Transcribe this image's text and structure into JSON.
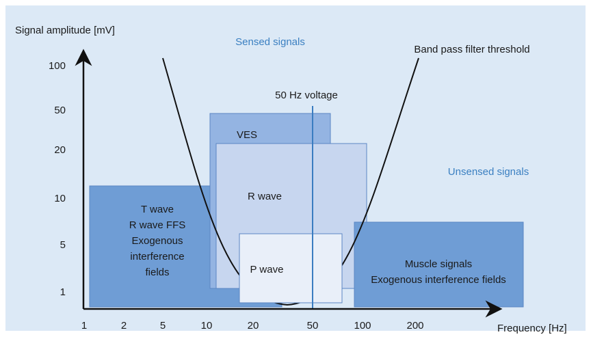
{
  "axes": {
    "y_label": "Signal amplitude [mV]",
    "x_label": "Frequency [Hz]",
    "y_ticks": [
      "100",
      "50",
      "20",
      "10",
      "5",
      "1"
    ],
    "x_ticks": [
      "1",
      "2",
      "5",
      "10",
      "20",
      "50",
      "100",
      "200"
    ]
  },
  "annotations": {
    "sensed": "Sensed signals",
    "unsensed": "Unsensed signals",
    "filter": "Band pass filter threshold",
    "voltage": "50 Hz voltage"
  },
  "boxes": {
    "t_wave": [
      "T wave",
      "R wave FFS",
      "Exogenous",
      "interference",
      "fields"
    ],
    "ves": "VES",
    "r_wave": "R wave",
    "p_wave": "P wave",
    "muscle": [
      "Muscle signals",
      "Exogenous interference fields"
    ]
  }
}
